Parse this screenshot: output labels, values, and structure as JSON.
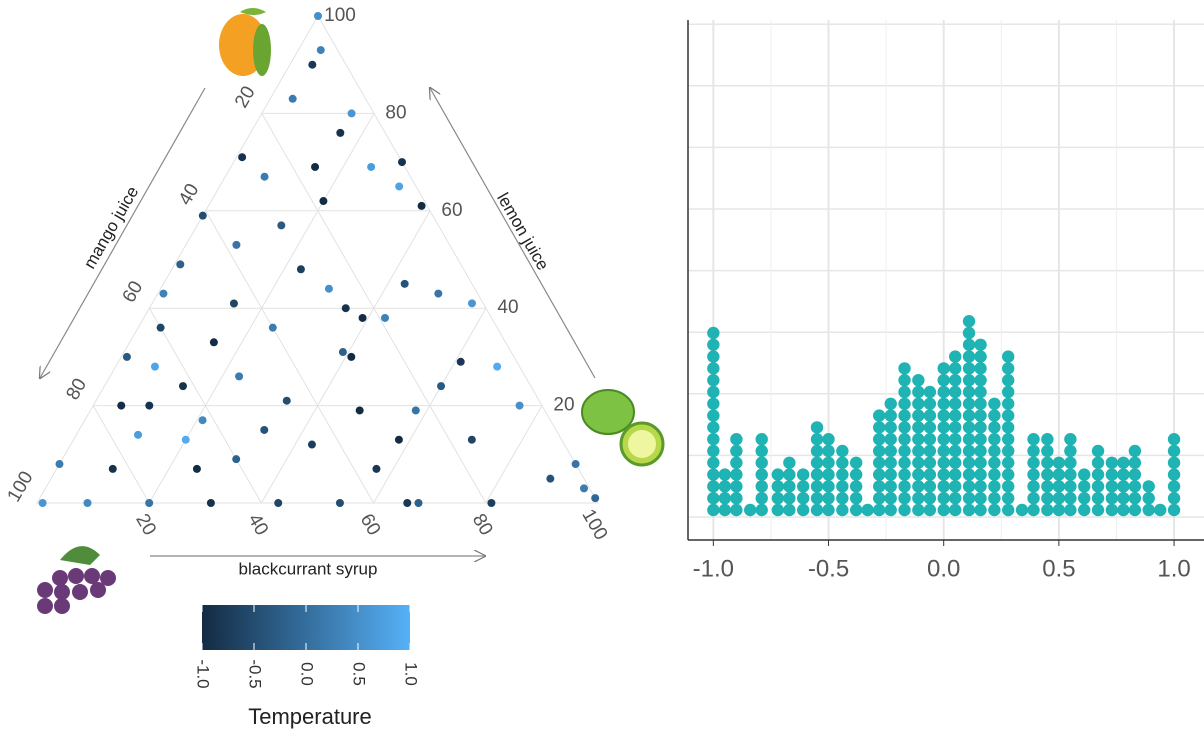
{
  "chart_data": [
    {
      "type": "ternary",
      "axes": [
        {
          "label": "mango juice",
          "ticks": [
            20,
            40,
            60,
            80,
            100
          ]
        },
        {
          "label": "lemon juice",
          "ticks": [
            20,
            40,
            60,
            80,
            100
          ]
        },
        {
          "label": "blackcurrant syrup",
          "ticks": [
            20,
            40,
            60,
            80,
            100
          ]
        }
      ],
      "grid": true,
      "points": {
        "mango": [
          0,
          3,
          6,
          4,
          13,
          28,
          16,
          8,
          6,
          0,
          3,
          1,
          26,
          41,
          28,
          18,
          29,
          38,
          50,
          45,
          25,
          23,
          12,
          7,
          2,
          19,
          26,
          56,
          60,
          52,
          40,
          29,
          10,
          4,
          69,
          65,
          62,
          51,
          30,
          75,
          70,
          62,
          45,
          33,
          23,
          4,
          67,
          52,
          45,
          29,
          16,
          92,
          83,
          68,
          60,
          36,
          6,
          99,
          91,
          80,
          69,
          57,
          46,
          34,
          32,
          19,
          0,
          1,
          0,
          75,
          16
        ],
        "lemon": [
          100,
          93,
          90,
          80,
          83,
          71,
          69,
          76,
          69,
          70,
          65,
          61,
          67,
          59,
          57,
          62,
          48,
          53,
          49,
          42,
          40,
          38,
          45,
          43,
          41,
          38,
          44,
          43,
          36,
          33,
          36,
          30,
          29,
          28,
          30,
          28,
          24,
          26,
          31,
          20,
          20,
          17,
          21,
          19,
          19,
          20,
          13,
          15,
          12,
          13,
          13,
          8,
          7,
          7,
          9,
          7,
          5,
          0,
          0,
          0,
          0,
          0,
          0,
          0,
          0,
          0,
          1,
          3,
          8,
          14,
          24
        ],
        "blackcurrant": [
          0,
          4,
          4,
          16,
          4,
          1,
          15,
          16,
          25,
          30,
          32,
          38,
          7,
          0,
          15,
          20,
          23,
          9,
          1,
          14,
          35,
          39,
          43,
          50,
          57,
          43,
          30,
          1,
          4,
          15,
          24,
          41,
          61,
          68,
          1,
          7,
          14,
          23,
          39,
          5,
          10,
          21,
          34,
          48,
          58,
          76,
          20,
          33,
          43,
          58,
          71,
          0,
          10,
          25,
          31,
          57,
          89,
          1,
          9,
          20,
          31,
          43,
          54,
          66,
          68,
          81,
          99,
          96,
          92,
          11,
          60
        ],
        "temperature": [
          0.5,
          0.3,
          -0.8,
          0.6,
          0.2,
          -0.9,
          -1,
          -0.9,
          0.7,
          -0.9,
          0.8,
          -1,
          0.2,
          -0.5,
          -0.3,
          -1,
          -0.7,
          0.1,
          -0.2,
          -0.6,
          -0.9,
          -1,
          -0.4,
          0.1,
          0.6,
          0.3,
          0.5,
          0.3,
          -0.6,
          -1,
          0.2,
          -1,
          -0.8,
          0.9,
          -0.3,
          0.8,
          -0.9,
          0.2,
          -0.2,
          -1,
          -0.9,
          0.4,
          -0.5,
          -1,
          0.1,
          0.5,
          0.9,
          -0.4,
          -0.7,
          -1,
          -0.6,
          0.2,
          -0.9,
          -1,
          -0.2,
          -0.8,
          -0.4,
          0.6,
          0.4,
          0.1,
          -0.9,
          -0.6,
          -0.5,
          -0.8,
          -0.2,
          -0.7,
          -0.1,
          0.2,
          0.1,
          0.7,
          -0.3
        ]
      },
      "colorbar": {
        "title": "Temperature",
        "lim": [
          -1,
          1
        ],
        "low": "#132B43",
        "high": "#56B1F7",
        "ticks": [
          {
            "value": -1,
            "label": "-1.0"
          },
          {
            "value": -0.5,
            "label": "-0.5"
          },
          {
            "value": 0,
            "label": "0.0"
          },
          {
            "value": 0.5,
            "label": "0.5"
          },
          {
            "value": 1,
            "label": "1.0"
          }
        ]
      }
    },
    {
      "type": "dotplot",
      "color": "#1fb3b3",
      "grid": true,
      "x": [
        -1,
        -0.95,
        -0.9,
        -0.84,
        -0.79,
        -0.72,
        -0.67,
        -0.61,
        -0.55,
        -0.5,
        -0.44,
        -0.38,
        -0.33,
        -0.28,
        -0.23,
        -0.17,
        -0.11,
        -0.06,
        0,
        0.05,
        0.11,
        0.16,
        0.22,
        0.28,
        0.34,
        0.39,
        0.45,
        0.5,
        0.55,
        0.61,
        0.67,
        0.73,
        0.78,
        0.83,
        0.89,
        0.94,
        1
      ],
      "counts": [
        16,
        4,
        7,
        1,
        7,
        4,
        5,
        4,
        8,
        7,
        6,
        5,
        1,
        9,
        10,
        13,
        12,
        11,
        13,
        14,
        17,
        15,
        10,
        14,
        1,
        7,
        7,
        5,
        7,
        4,
        6,
        5,
        5,
        6,
        3,
        1,
        7
      ],
      "xlim": [
        -1.11,
        1.13
      ],
      "xticks": [
        {
          "value": -1,
          "label": "-1.0"
        },
        {
          "value": -0.5,
          "label": "-0.5"
        },
        {
          "value": 0,
          "label": "0.0"
        },
        {
          "value": 0.5,
          "label": "0.5"
        },
        {
          "value": 1,
          "label": "1.0"
        }
      ]
    }
  ]
}
